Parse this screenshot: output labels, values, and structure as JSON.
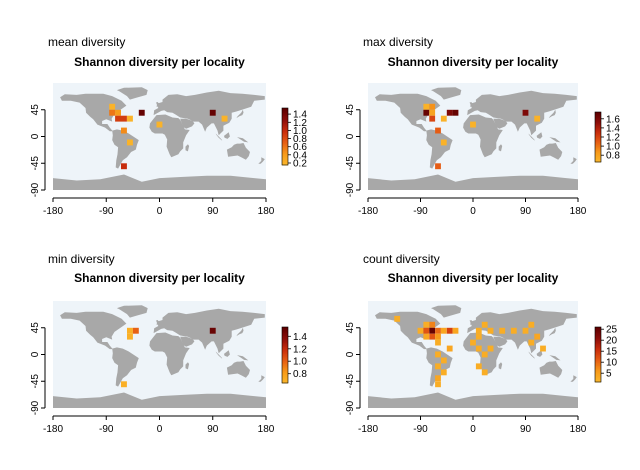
{
  "colors": {
    "ocean": "#eef4f9",
    "land": "#a8a8a8",
    "ice": "#a8a8a8",
    "ramp": [
      "#fbb92c",
      "#f79a1a",
      "#e65e14",
      "#c92d0d",
      "#8c0d0a",
      "#5c0000"
    ]
  },
  "chart_data": [
    {
      "type": "heatmap",
      "panel_label": "mean diversity",
      "title": "Shannon diversity per locality",
      "xlim": [
        -180,
        180
      ],
      "ylim": [
        -90,
        90
      ],
      "x_ticks": [
        -180,
        -90,
        0,
        90,
        180
      ],
      "y_ticks": [
        -90,
        -45,
        0,
        45
      ],
      "grid": false,
      "legend": {
        "placement": "right",
        "range": [
          0.15,
          1.55
        ],
        "ticks": [
          "0.2",
          "0.4",
          "0.6",
          "0.8",
          "1.0",
          "1.2",
          "1.4"
        ]
      },
      "cells": [
        {
          "lon": -80,
          "lat": 50,
          "value": 0.2
        },
        {
          "lon": -80,
          "lat": 40,
          "value": 0.6
        },
        {
          "lon": -70,
          "lat": 40,
          "value": 0.4
        },
        {
          "lon": -30,
          "lat": 40,
          "value": 1.5
        },
        {
          "lon": -70,
          "lat": 30,
          "value": 0.9
        },
        {
          "lon": -60,
          "lat": 30,
          "value": 0.9
        },
        {
          "lon": -50,
          "lat": 30,
          "value": 0.2
        },
        {
          "lon": -60,
          "lat": 10,
          "value": 0.5
        },
        {
          "lon": 0,
          "lat": 20,
          "value": 0.2
        },
        {
          "lon": 90,
          "lat": 40,
          "value": 1.5
        },
        {
          "lon": 110,
          "lat": 30,
          "value": 0.2
        },
        {
          "lon": -50,
          "lat": -10,
          "value": 0.2
        },
        {
          "lon": -60,
          "lat": -50,
          "value": 1.0
        }
      ]
    },
    {
      "type": "heatmap",
      "panel_label": "max diversity",
      "title": "Shannon diversity per locality",
      "xlim": [
        -180,
        180
      ],
      "ylim": [
        -90,
        90
      ],
      "x_ticks": [
        -180,
        -90,
        0,
        90,
        180
      ],
      "y_ticks": [
        -90,
        -45,
        0,
        45
      ],
      "grid": false,
      "legend": {
        "placement": "right",
        "range": [
          0.65,
          1.75
        ],
        "ticks": [
          "0.8",
          "1.0",
          "1.2",
          "1.4",
          "1.6"
        ]
      },
      "cells": [
        {
          "lon": -80,
          "lat": 50,
          "value": 0.7
        },
        {
          "lon": -80,
          "lat": 40,
          "value": 1.7
        },
        {
          "lon": -70,
          "lat": 40,
          "value": 0.8
        },
        {
          "lon": -70,
          "lat": 50,
          "value": 0.9
        },
        {
          "lon": -40,
          "lat": 40,
          "value": 1.6
        },
        {
          "lon": -30,
          "lat": 40,
          "value": 1.7
        },
        {
          "lon": -70,
          "lat": 30,
          "value": 1.2
        },
        {
          "lon": -50,
          "lat": 30,
          "value": 0.7
        },
        {
          "lon": -60,
          "lat": 10,
          "value": 1.1
        },
        {
          "lon": 0,
          "lat": 20,
          "value": 0.7
        },
        {
          "lon": 90,
          "lat": 40,
          "value": 1.6
        },
        {
          "lon": 110,
          "lat": 30,
          "value": 0.7
        },
        {
          "lon": -50,
          "lat": -10,
          "value": 0.7
        },
        {
          "lon": -60,
          "lat": -50,
          "value": 1.1
        }
      ]
    },
    {
      "type": "heatmap",
      "panel_label": "min diversity",
      "title": "Shannon diversity per locality",
      "xlim": [
        -180,
        180
      ],
      "ylim": [
        -90,
        90
      ],
      "x_ticks": [
        -180,
        -90,
        0,
        90,
        180
      ],
      "y_ticks": [
        -90,
        -45,
        0,
        45
      ],
      "grid": false,
      "legend": {
        "placement": "right",
        "range": [
          0.65,
          1.55
        ],
        "ticks": [
          "0.8",
          "1.0",
          "1.2",
          "1.4"
        ]
      },
      "cells": [
        {
          "lon": -50,
          "lat": 40,
          "value": 0.7
        },
        {
          "lon": -40,
          "lat": 40,
          "value": 1.0
        },
        {
          "lon": -50,
          "lat": 30,
          "value": 0.7
        },
        {
          "lon": 90,
          "lat": 40,
          "value": 1.5
        },
        {
          "lon": -60,
          "lat": -50,
          "value": 0.7
        }
      ]
    },
    {
      "type": "heatmap",
      "panel_label": "count diversity",
      "title": "Shannon diversity per locality",
      "xlim": [
        -180,
        180
      ],
      "ylim": [
        -90,
        90
      ],
      "x_ticks": [
        -180,
        -90,
        0,
        90,
        180
      ],
      "y_ticks": [
        -90,
        -45,
        0,
        45
      ],
      "grid": false,
      "legend": {
        "placement": "right",
        "range": [
          1,
          26
        ],
        "ticks": [
          "5",
          "10",
          "15",
          "20",
          "25"
        ]
      },
      "cells": [
        {
          "lon": -130,
          "lat": 60,
          "value": 3
        },
        {
          "lon": -80,
          "lat": 50,
          "value": 3
        },
        {
          "lon": -70,
          "lat": 50,
          "value": 8
        },
        {
          "lon": -90,
          "lat": 40,
          "value": 3
        },
        {
          "lon": -80,
          "lat": 40,
          "value": 12
        },
        {
          "lon": -70,
          "lat": 40,
          "value": 25
        },
        {
          "lon": -60,
          "lat": 40,
          "value": 10
        },
        {
          "lon": -50,
          "lat": 40,
          "value": 4
        },
        {
          "lon": -40,
          "lat": 40,
          "value": 14
        },
        {
          "lon": -30,
          "lat": 40,
          "value": 4
        },
        {
          "lon": -80,
          "lat": 30,
          "value": 4
        },
        {
          "lon": -70,
          "lat": 30,
          "value": 12
        },
        {
          "lon": -60,
          "lat": 30,
          "value": 6
        },
        {
          "lon": -60,
          "lat": 20,
          "value": 3
        },
        {
          "lon": 10,
          "lat": 40,
          "value": 3
        },
        {
          "lon": 30,
          "lat": 40,
          "value": 3
        },
        {
          "lon": 50,
          "lat": 40,
          "value": 3
        },
        {
          "lon": 70,
          "lat": 40,
          "value": 3
        },
        {
          "lon": 90,
          "lat": 40,
          "value": 3
        },
        {
          "lon": 10,
          "lat": 30,
          "value": 3
        },
        {
          "lon": 20,
          "lat": 50,
          "value": 3
        },
        {
          "lon": 100,
          "lat": 50,
          "value": 3
        },
        {
          "lon": 110,
          "lat": 30,
          "value": 4
        },
        {
          "lon": 100,
          "lat": 20,
          "value": 3
        },
        {
          "lon": 120,
          "lat": 10,
          "value": 3
        },
        {
          "lon": 10,
          "lat": 10,
          "value": 3
        },
        {
          "lon": 20,
          "lat": 0,
          "value": 3
        },
        {
          "lon": 0,
          "lat": 20,
          "value": 3
        },
        {
          "lon": 30,
          "lat": 10,
          "value": 3
        },
        {
          "lon": 10,
          "lat": -20,
          "value": 3
        },
        {
          "lon": 20,
          "lat": -30,
          "value": 3
        },
        {
          "lon": -60,
          "lat": 0,
          "value": 3
        },
        {
          "lon": -40,
          "lat": 10,
          "value": 4
        },
        {
          "lon": -50,
          "lat": -10,
          "value": 3
        },
        {
          "lon": -60,
          "lat": -20,
          "value": 3
        },
        {
          "lon": -50,
          "lat": -30,
          "value": 3
        },
        {
          "lon": -60,
          "lat": -50,
          "value": 3
        },
        {
          "lon": -60,
          "lat": -40,
          "value": 4
        }
      ]
    }
  ]
}
